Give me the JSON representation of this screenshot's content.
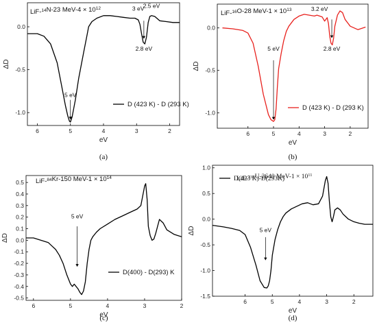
{
  "chart_data": [
    {
      "type": "line",
      "panel_label": "(a)",
      "title": {
        "pre": "LiF-",
        "sup1": "14",
        "mid": "N-23 MeV-4 × 10",
        "sup2": "12"
      },
      "xlabel": "eV",
      "ylabel": "ΔD",
      "xlim": [
        6.3,
        1.7
      ],
      "ylim": [
        -1.15,
        0.28
      ],
      "xticks": [
        6,
        5,
        4,
        3,
        2
      ],
      "yticks": [
        0.0,
        -0.5,
        -1.0
      ],
      "ytick_labels": [
        "0.0",
        "-0.5",
        "-1.0"
      ],
      "legend": "D (423 K) - D (293 K)",
      "color": "#000000",
      "annotations": [
        {
          "text": "5 eV",
          "x": 5.0,
          "y": -0.82,
          "arrow_to": -1.08
        },
        {
          "text": "3 eV",
          "x": 2.95,
          "y": 0.19
        },
        {
          "text": "2.5 eV",
          "x": 2.55,
          "y": 0.22
        },
        {
          "text": "2.8 eV",
          "x": 2.78,
          "y": -0.28,
          "arrow_from": 0.07,
          "arrow_to": -0.14
        }
      ],
      "series": [
        {
          "x": [
            6.3,
            6.0,
            5.8,
            5.6,
            5.4,
            5.25,
            5.15,
            5.08,
            5.03,
            5.0,
            4.95,
            4.85,
            4.75,
            4.6,
            4.5,
            4.45,
            4.35,
            4.2,
            4.0,
            3.8,
            3.6,
            3.4,
            3.2,
            3.05,
            2.95,
            2.9,
            2.85,
            2.8,
            2.75,
            2.7,
            2.65,
            2.6,
            2.55,
            2.45,
            2.3,
            2.1,
            1.9,
            1.7
          ],
          "y": [
            -0.08,
            -0.08,
            -0.11,
            -0.2,
            -0.42,
            -0.72,
            -0.92,
            -1.04,
            -1.1,
            -1.11,
            -1.05,
            -0.85,
            -0.6,
            -0.3,
            -0.1,
            0.0,
            0.06,
            0.1,
            0.13,
            0.13,
            0.12,
            0.11,
            0.1,
            0.1,
            0.08,
            0.03,
            -0.08,
            -0.18,
            -0.2,
            -0.12,
            0.05,
            0.12,
            0.13,
            0.12,
            0.07,
            0.06,
            0.05,
            0.05
          ]
        }
      ]
    },
    {
      "type": "line",
      "panel_label": "(b)",
      "title": {
        "pre": "LiF-",
        "sup1": "16",
        "mid": "O-28 MeV-1 × 10",
        "sup2": "13"
      },
      "xlabel": "eV",
      "ylabel": "ΔD",
      "xlim": [
        7.2,
        1.3
      ],
      "ylim": [
        -1.18,
        0.28
      ],
      "xticks": [
        6,
        5,
        4,
        3,
        2
      ],
      "yticks": [
        0.0,
        -0.5,
        -1.0
      ],
      "ytick_labels": [
        "0.0",
        "-0.5",
        "-1.0"
      ],
      "legend": "D (423 K) - D (293 K)",
      "color": "#e8201c",
      "annotations": [
        {
          "text": "5 eV",
          "x": 5.0,
          "y": -0.27,
          "arrow_from": -0.38,
          "arrow_to": -1.08
        },
        {
          "text": "3.2 eV",
          "x": 3.2,
          "y": 0.2
        },
        {
          "text": "2.8 eV",
          "x": 2.72,
          "y": -0.27,
          "arrow_from": 0.1,
          "arrow_to": -0.12
        }
      ],
      "series": [
        {
          "x": [
            7.0,
            6.6,
            6.2,
            6.0,
            5.8,
            5.6,
            5.4,
            5.2,
            5.1,
            5.0,
            4.95,
            4.9,
            4.85,
            4.8,
            4.7,
            4.6,
            4.5,
            4.4,
            4.3,
            4.2,
            4.0,
            3.8,
            3.6,
            3.4,
            3.3,
            3.2,
            3.1,
            3.0,
            2.9,
            2.85,
            2.8,
            2.75,
            2.7,
            2.65,
            2.6,
            2.5,
            2.4,
            2.3,
            2.2,
            2.0,
            1.7,
            1.4
          ],
          "y": [
            0.0,
            -0.01,
            -0.03,
            -0.06,
            -0.18,
            -0.45,
            -0.78,
            -1.02,
            -1.08,
            -1.1,
            -1.08,
            -0.95,
            -0.7,
            -0.48,
            -0.3,
            -0.15,
            -0.04,
            0.02,
            0.06,
            0.1,
            0.14,
            0.16,
            0.15,
            0.14,
            0.15,
            0.14,
            0.13,
            0.08,
            0.12,
            0.05,
            -0.1,
            -0.18,
            -0.2,
            -0.12,
            0.02,
            0.15,
            0.2,
            0.18,
            0.1,
            0.02,
            -0.02,
            0.01
          ]
        }
      ]
    },
    {
      "type": "line",
      "panel_label": "(c)",
      "title": {
        "pre": "LiF-",
        "sup1": "84",
        "mid": "Kr-150 MeV-1 × 10",
        "sup2": "14"
      },
      "xlabel": "eV",
      "ylabel": "ΔD",
      "xlim": [
        6.2,
        2.0
      ],
      "ylim": [
        -0.52,
        0.56
      ],
      "xticks": [
        6,
        5,
        4,
        3,
        2
      ],
      "yticks": [
        0.5,
        0.4,
        0.3,
        0.2,
        0.1,
        0.0,
        -0.1,
        -0.2,
        -0.3,
        -0.4,
        -0.5
      ],
      "ytick_labels": [
        "0.5",
        "0.4",
        "0.3",
        "0.2",
        "0.1",
        "0.0",
        "-0.1",
        "-0.2",
        "-0.3",
        "-0.4",
        "-0.5"
      ],
      "legend": "D(400) - D(293) K",
      "color": "#000000",
      "annotations": [
        {
          "text": "5 eV",
          "x": 4.82,
          "y": 0.19,
          "arrow_from": 0.12,
          "arrow_to": -0.23
        }
      ],
      "series": [
        {
          "x": [
            6.2,
            6.0,
            5.8,
            5.6,
            5.5,
            5.4,
            5.3,
            5.2,
            5.1,
            5.0,
            4.95,
            4.9,
            4.85,
            4.8,
            4.75,
            4.7,
            4.65,
            4.6,
            4.55,
            4.5,
            4.45,
            4.4,
            4.3,
            4.2,
            4.0,
            3.8,
            3.6,
            3.4,
            3.2,
            3.1,
            3.0,
            2.97,
            2.93,
            2.9,
            2.85,
            2.8,
            2.75,
            2.7,
            2.65,
            2.6,
            2.5,
            2.4,
            2.3,
            2.2,
            2.1,
            2.0
          ],
          "y": [
            0.02,
            0.02,
            0.0,
            -0.02,
            -0.05,
            -0.08,
            -0.13,
            -0.2,
            -0.3,
            -0.38,
            -0.4,
            -0.38,
            -0.4,
            -0.42,
            -0.45,
            -0.47,
            -0.44,
            -0.36,
            -0.2,
            -0.08,
            0.0,
            0.03,
            0.07,
            0.1,
            0.14,
            0.18,
            0.21,
            0.24,
            0.27,
            0.3,
            0.47,
            0.49,
            0.35,
            0.12,
            0.04,
            0.0,
            0.01,
            0.06,
            0.12,
            0.18,
            0.15,
            0.09,
            0.07,
            0.05,
            0.04,
            0.03
          ]
        }
      ]
    },
    {
      "type": "line",
      "panel_label": "(d)",
      "title": {
        "pre": "LiF-",
        "sup1": "238",
        "mid": "U-2640 MeV-1 × 10",
        "sup2": "11"
      },
      "xlabel": "eV",
      "ylabel": "ΔD",
      "xlim": [
        7.2,
        1.3
      ],
      "ylim": [
        -1.5,
        1.05
      ],
      "xticks": [
        6,
        5,
        4,
        3,
        2
      ],
      "yticks": [
        1.0,
        0.5,
        0.0,
        -0.5,
        -1.0,
        -1.5
      ],
      "ytick_labels": [
        "1.0",
        "0.5",
        "0.0",
        "-0.5",
        "-1.0",
        "-1.5"
      ],
      "legend": "D(423 K)-D(293K)",
      "color": "#000000",
      "annotations": [
        {
          "text": "5 eV",
          "x": 5.25,
          "y": -0.25,
          "arrow_from": -0.35,
          "arrow_to": -0.8
        }
      ],
      "series": [
        {
          "x": [
            7.2,
            6.8,
            6.5,
            6.2,
            6.0,
            5.8,
            5.6,
            5.45,
            5.3,
            5.2,
            5.15,
            5.1,
            5.05,
            5.0,
            4.9,
            4.8,
            4.7,
            4.6,
            4.5,
            4.3,
            4.1,
            3.9,
            3.7,
            3.5,
            3.3,
            3.15,
            3.05,
            3.0,
            2.95,
            2.9,
            2.85,
            2.8,
            2.75,
            2.7,
            2.6,
            2.5,
            2.4,
            2.3,
            2.2,
            2.0,
            1.8,
            1.6,
            1.3
          ],
          "y": [
            -0.12,
            -0.15,
            -0.18,
            -0.22,
            -0.3,
            -0.55,
            -0.9,
            -1.2,
            -1.33,
            -1.34,
            -1.3,
            -1.2,
            -1.0,
            -0.7,
            -0.4,
            -0.2,
            -0.05,
            0.05,
            0.12,
            0.2,
            0.25,
            0.3,
            0.32,
            0.28,
            0.3,
            0.45,
            0.75,
            0.83,
            0.7,
            0.35,
            0.05,
            -0.05,
            0.05,
            0.18,
            0.22,
            0.18,
            0.1,
            0.05,
            0.0,
            -0.05,
            -0.08,
            -0.1,
            -0.1
          ]
        }
      ]
    }
  ]
}
